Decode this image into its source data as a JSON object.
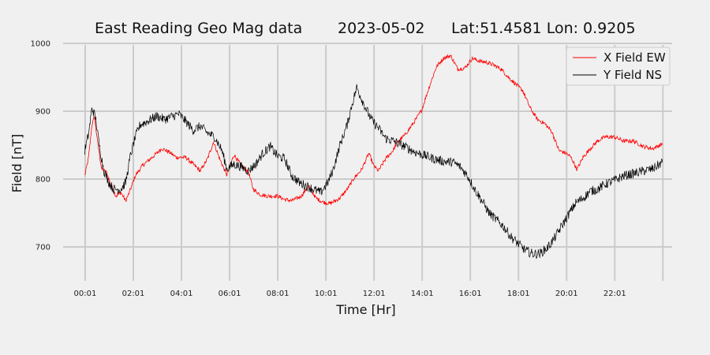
{
  "chart_data": {
    "type": "line",
    "title_parts": [
      "East Reading Geo Mag data",
      "2023-05-02",
      "Lat:51.4581  Lon: 0.9205"
    ],
    "xlabel": "Time  [Hr]",
    "ylabel": "Field  [nT]",
    "xlim": [
      -0.9,
      24.4
    ],
    "ylim": [
      650,
      1000
    ],
    "yticks": [
      700,
      800,
      900,
      1000
    ],
    "xticks": [
      {
        "v": 0.0167,
        "label": "00:01"
      },
      {
        "v": 2.0167,
        "label": "02:01"
      },
      {
        "v": 4.0167,
        "label": "04:01"
      },
      {
        "v": 6.0167,
        "label": "06:01"
      },
      {
        "v": 8.0167,
        "label": "08:01"
      },
      {
        "v": 10.0167,
        "label": "10:01"
      },
      {
        "v": 12.0167,
        "label": "12:01"
      },
      {
        "v": 14.0167,
        "label": "14:01"
      },
      {
        "v": 16.0167,
        "label": "16:01"
      },
      {
        "v": 18.0167,
        "label": "18:01"
      },
      {
        "v": 20.0167,
        "label": "20:01"
      },
      {
        "v": 22.0167,
        "label": "22:01"
      }
    ],
    "grid": true,
    "legend_position": "top-right",
    "series": [
      {
        "name": "X Field EW",
        "color": "#ff0000",
        "noise": 3,
        "points": [
          [
            0.0,
            805
          ],
          [
            0.15,
            830
          ],
          [
            0.3,
            880
          ],
          [
            0.4,
            892
          ],
          [
            0.55,
            850
          ],
          [
            0.7,
            815
          ],
          [
            0.9,
            810
          ],
          [
            1.1,
            790
          ],
          [
            1.3,
            775
          ],
          [
            1.5,
            780
          ],
          [
            1.7,
            768
          ],
          [
            1.85,
            780
          ],
          [
            2.1,
            805
          ],
          [
            2.4,
            820
          ],
          [
            2.8,
            832
          ],
          [
            3.2,
            845
          ],
          [
            3.5,
            840
          ],
          [
            3.8,
            832
          ],
          [
            4.2,
            832
          ],
          [
            4.5,
            822
          ],
          [
            4.8,
            812
          ],
          [
            5.1,
            830
          ],
          [
            5.35,
            855
          ],
          [
            5.6,
            830
          ],
          [
            5.9,
            806
          ],
          [
            6.2,
            836
          ],
          [
            6.5,
            820
          ],
          [
            6.8,
            810
          ],
          [
            7.0,
            785
          ],
          [
            7.3,
            777
          ],
          [
            7.6,
            775
          ],
          [
            8.0,
            775
          ],
          [
            8.3,
            770
          ],
          [
            8.6,
            768
          ],
          [
            9.0,
            775
          ],
          [
            9.3,
            790
          ],
          [
            9.6,
            772
          ],
          [
            9.9,
            766
          ],
          [
            10.2,
            764
          ],
          [
            10.6,
            772
          ],
          [
            10.9,
            785
          ],
          [
            11.2,
            802
          ],
          [
            11.5,
            814
          ],
          [
            11.8,
            838
          ],
          [
            12.0,
            820
          ],
          [
            12.2,
            812
          ],
          [
            12.5,
            830
          ],
          [
            12.8,
            842
          ],
          [
            13.0,
            855
          ],
          [
            13.3,
            865
          ],
          [
            13.7,
            885
          ],
          [
            14.0,
            902
          ],
          [
            14.3,
            935
          ],
          [
            14.6,
            965
          ],
          [
            14.9,
            978
          ],
          [
            15.2,
            982
          ],
          [
            15.5,
            962
          ],
          [
            15.8,
            964
          ],
          [
            16.1,
            978
          ],
          [
            16.4,
            974
          ],
          [
            16.7,
            972
          ],
          [
            17.0,
            968
          ],
          [
            17.3,
            962
          ],
          [
            17.6,
            950
          ],
          [
            17.9,
            940
          ],
          [
            18.2,
            930
          ],
          [
            18.5,
            905
          ],
          [
            18.8,
            888
          ],
          [
            19.1,
            882
          ],
          [
            19.4,
            870
          ],
          [
            19.7,
            842
          ],
          [
            20.0,
            838
          ],
          [
            20.2,
            832
          ],
          [
            20.45,
            814
          ],
          [
            20.7,
            832
          ],
          [
            21.0,
            845
          ],
          [
            21.3,
            856
          ],
          [
            21.6,
            862
          ],
          [
            22.0,
            862
          ],
          [
            22.4,
            856
          ],
          [
            22.8,
            856
          ],
          [
            23.2,
            848
          ],
          [
            23.6,
            845
          ],
          [
            24.0,
            852
          ]
        ]
      },
      {
        "name": "Y Field NS",
        "color": "#000000",
        "noise": 7,
        "points": [
          [
            0.0,
            842
          ],
          [
            0.15,
            865
          ],
          [
            0.3,
            905
          ],
          [
            0.45,
            890
          ],
          [
            0.6,
            850
          ],
          [
            0.8,
            812
          ],
          [
            1.0,
            795
          ],
          [
            1.2,
            785
          ],
          [
            1.5,
            785
          ],
          [
            1.7,
            795
          ],
          [
            1.9,
            835
          ],
          [
            2.1,
            862
          ],
          [
            2.3,
            880
          ],
          [
            2.6,
            885
          ],
          [
            3.0,
            893
          ],
          [
            3.3,
            888
          ],
          [
            3.6,
            892
          ],
          [
            3.9,
            896
          ],
          [
            4.2,
            885
          ],
          [
            4.5,
            872
          ],
          [
            4.8,
            878
          ],
          [
            5.1,
            868
          ],
          [
            5.4,
            862
          ],
          [
            5.7,
            842
          ],
          [
            5.9,
            815
          ],
          [
            6.2,
            822
          ],
          [
            6.5,
            818
          ],
          [
            6.8,
            812
          ],
          [
            7.1,
            822
          ],
          [
            7.4,
            838
          ],
          [
            7.7,
            848
          ],
          [
            8.0,
            834
          ],
          [
            8.3,
            830
          ],
          [
            8.6,
            805
          ],
          [
            8.9,
            795
          ],
          [
            9.2,
            790
          ],
          [
            9.5,
            785
          ],
          [
            9.8,
            780
          ],
          [
            10.1,
            795
          ],
          [
            10.3,
            812
          ],
          [
            10.6,
            850
          ],
          [
            10.9,
            880
          ],
          [
            11.1,
            910
          ],
          [
            11.3,
            935
          ],
          [
            11.6,
            910
          ],
          [
            11.9,
            888
          ],
          [
            12.2,
            875
          ],
          [
            12.5,
            860
          ],
          [
            12.9,
            855
          ],
          [
            13.3,
            848
          ],
          [
            13.7,
            840
          ],
          [
            14.1,
            835
          ],
          [
            14.5,
            830
          ],
          [
            14.9,
            826
          ],
          [
            15.3,
            825
          ],
          [
            15.6,
            818
          ],
          [
            15.9,
            805
          ],
          [
            16.2,
            785
          ],
          [
            16.5,
            768
          ],
          [
            16.8,
            750
          ],
          [
            17.1,
            740
          ],
          [
            17.4,
            730
          ],
          [
            17.7,
            715
          ],
          [
            18.0,
            705
          ],
          [
            18.3,
            695
          ],
          [
            18.6,
            690
          ],
          [
            18.9,
            690
          ],
          [
            19.2,
            698
          ],
          [
            19.5,
            712
          ],
          [
            19.8,
            730
          ],
          [
            20.1,
            748
          ],
          [
            20.4,
            765
          ],
          [
            20.7,
            772
          ],
          [
            21.0,
            782
          ],
          [
            21.3,
            785
          ],
          [
            21.6,
            792
          ],
          [
            22.0,
            798
          ],
          [
            22.4,
            805
          ],
          [
            22.8,
            808
          ],
          [
            23.2,
            812
          ],
          [
            23.6,
            815
          ],
          [
            24.0,
            825
          ]
        ]
      }
    ]
  }
}
